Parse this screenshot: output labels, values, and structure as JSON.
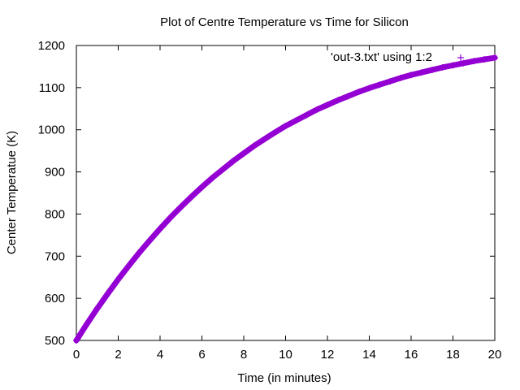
{
  "chart_data": {
    "type": "scatter",
    "title": "Plot of Centre Temperature vs Time for Silicon",
    "xlabel": "Time (in minutes)",
    "ylabel": "Center Temperatue (K)",
    "xlim": [
      0,
      20
    ],
    "ylim": [
      500,
      1200
    ],
    "xticks": [
      0,
      2,
      4,
      6,
      8,
      10,
      12,
      14,
      16,
      18,
      20
    ],
    "yticks": [
      500,
      600,
      700,
      800,
      900,
      1000,
      1100,
      1200
    ],
    "grid": false,
    "legend_position": "top-right",
    "series": [
      {
        "name": "'out-3.txt' using 1:2",
        "color": "#9400d3",
        "marker": "plus",
        "x": [
          0,
          0.5,
          1,
          1.5,
          2,
          2.5,
          3,
          3.5,
          4,
          4.5,
          5,
          5.5,
          6,
          6.5,
          7,
          7.5,
          8,
          8.5,
          9,
          9.5,
          10,
          10.5,
          11,
          11.5,
          12,
          12.5,
          13,
          13.5,
          14,
          14.5,
          15,
          15.5,
          16,
          16.5,
          17,
          17.5,
          18,
          18.5,
          19,
          19.5,
          20
        ],
        "y": [
          500,
          539,
          576,
          611,
          645,
          677,
          708,
          737,
          765,
          792,
          817,
          841,
          864,
          886,
          906,
          926,
          944,
          962,
          978,
          994,
          1009,
          1022,
          1035,
          1048,
          1059,
          1070,
          1080,
          1090,
          1099,
          1107,
          1115,
          1123,
          1130,
          1136,
          1142,
          1148,
          1153,
          1158,
          1163,
          1167,
          1171
        ]
      }
    ]
  }
}
